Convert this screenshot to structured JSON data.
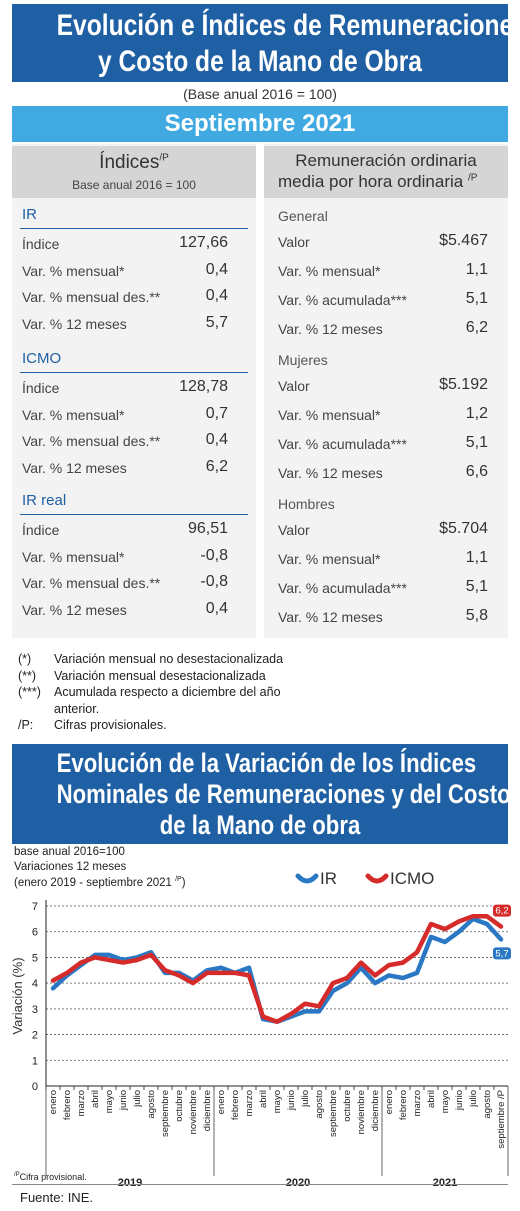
{
  "header": {
    "title_line1": "Evolución e Índices de Remuneraciones",
    "title_line2": "y Costo de la Mano de Obra",
    "base": "(Base anual 2016 = 100)",
    "period": "Septiembre 2021"
  },
  "left": {
    "head_title": "Índices",
    "head_sup": "/P",
    "head_sub": "Base anual 2016 = 100",
    "sections": [
      {
        "title": "IR",
        "rows": [
          {
            "label": "Índice",
            "value": "127,66"
          },
          {
            "label": "Var. % mensual*",
            "value": "0,4"
          },
          {
            "label": "Var. % mensual des.**",
            "value": "0,4"
          },
          {
            "label": "Var. % 12 meses",
            "value": "5,7"
          }
        ]
      },
      {
        "title": "ICMO",
        "rows": [
          {
            "label": "Índice",
            "value": "128,78"
          },
          {
            "label": "Var. % mensual*",
            "value": "0,7"
          },
          {
            "label": "Var. % mensual des.**",
            "value": "0,4"
          },
          {
            "label": "Var. % 12 meses",
            "value": "6,2"
          }
        ]
      },
      {
        "title": "IR real",
        "rows": [
          {
            "label": "Índice",
            "value": "96,51"
          },
          {
            "label": "Var. % mensual*",
            "value": "-0,8"
          },
          {
            "label": "Var. % mensual des.**",
            "value": "-0,8"
          },
          {
            "label": "Var. % 12 meses",
            "value": "0,4"
          }
        ]
      }
    ]
  },
  "right": {
    "head_line1": "Remuneración ordinaria",
    "head_line2": "media por hora ordinaria",
    "head_sup": "/P",
    "sections": [
      {
        "title": "General",
        "rows": [
          {
            "label": "Valor",
            "value": "$5.467"
          },
          {
            "label": "Var. % mensual*",
            "value": "1,1"
          },
          {
            "label": "Var. % acumulada***",
            "value": "5,1"
          },
          {
            "label": "Var. % 12 meses",
            "value": "6,2"
          }
        ]
      },
      {
        "title": "Mujeres",
        "rows": [
          {
            "label": "Valor",
            "value": "$5.192"
          },
          {
            "label": "Var. % mensual*",
            "value": "1,2"
          },
          {
            "label": "Var. % acumulada***",
            "value": "5,1"
          },
          {
            "label": "Var. % 12 meses",
            "value": "6,6"
          }
        ]
      },
      {
        "title": "Hombres",
        "rows": [
          {
            "label": "Valor",
            "value": "$5.704"
          },
          {
            "label": "Var. % mensual*",
            "value": "1,1"
          },
          {
            "label": "Var. % acumulada***",
            "value": "5,1"
          },
          {
            "label": "Var. % 12 meses",
            "value": "5,8"
          }
        ]
      }
    ]
  },
  "notes": [
    {
      "mark": "(*)",
      "text": "Variación mensual no desestacionalizada"
    },
    {
      "mark": "(**)",
      "text": "Variación mensual desestacionalizada"
    },
    {
      "mark": "(***)",
      "text": "Acumulada respecto a diciembre del año"
    },
    {
      "mark": "",
      "text": "anterior."
    },
    {
      "mark": "/P:",
      "text": "Cifras provisionales."
    }
  ],
  "chart_header": {
    "line1": "Evolución de la Variación de los Índices",
    "line2": "Nominales de Remuneraciones y del Costo",
    "line3": "de la Mano de obra"
  },
  "chart_data": {
    "type": "line",
    "base": "base anual 2016=100",
    "subtitle": "Variaciones 12 meses",
    "period": "(enero 2019 - septiembre 2021",
    "period_sup": "/P",
    "period_close": ")",
    "ylabel": "Variación (%)",
    "ylim": [
      0,
      7
    ],
    "yticks": [
      "0",
      "1",
      "2",
      "3",
      "4",
      "5",
      "6",
      "7"
    ],
    "grid": true,
    "legend_position": "top-right",
    "categories": [
      "enero",
      "febrero",
      "marzo",
      "abril",
      "mayo",
      "junio",
      "julio",
      "agosto",
      "septiembre",
      "octubre",
      "noviembre",
      "diciembre",
      "enero",
      "febrero",
      "marzo",
      "abril",
      "mayo",
      "junio",
      "julio",
      "agosto",
      "septiembre",
      "octubre",
      "noviembre",
      "diciembre",
      "enero",
      "febrero",
      "marzo",
      "abril",
      "mayo",
      "junio",
      "julio",
      "agosto",
      "septiembre /P"
    ],
    "years": [
      "2019",
      "2020",
      "2021"
    ],
    "series": [
      {
        "name": "IR",
        "color": "#2a78c4",
        "values": [
          3.8,
          4.3,
          4.7,
          5.1,
          5.1,
          4.9,
          5.0,
          5.2,
          4.4,
          4.4,
          4.1,
          4.5,
          4.6,
          4.4,
          4.6,
          2.6,
          2.5,
          2.7,
          2.9,
          2.9,
          3.7,
          4.0,
          4.6,
          4.0,
          4.3,
          4.2,
          4.4,
          5.8,
          5.6,
          6.0,
          6.5,
          6.3,
          5.7
        ]
      },
      {
        "name": "ICMO",
        "color": "#d62b2b",
        "values": [
          4.1,
          4.4,
          4.8,
          5.0,
          4.9,
          4.8,
          4.9,
          5.1,
          4.5,
          4.3,
          4.0,
          4.4,
          4.4,
          4.4,
          4.3,
          2.7,
          2.5,
          2.8,
          3.2,
          3.1,
          4.0,
          4.2,
          4.8,
          4.3,
          4.7,
          4.8,
          5.2,
          6.3,
          6.1,
          6.4,
          6.6,
          6.6,
          6.2
        ]
      }
    ],
    "end_labels": {
      "IR": "5,7",
      "ICMO": "6,2"
    },
    "footnote_sup": "/P",
    "footnote": "Cifra provisional."
  },
  "source": "Fuente: INE."
}
